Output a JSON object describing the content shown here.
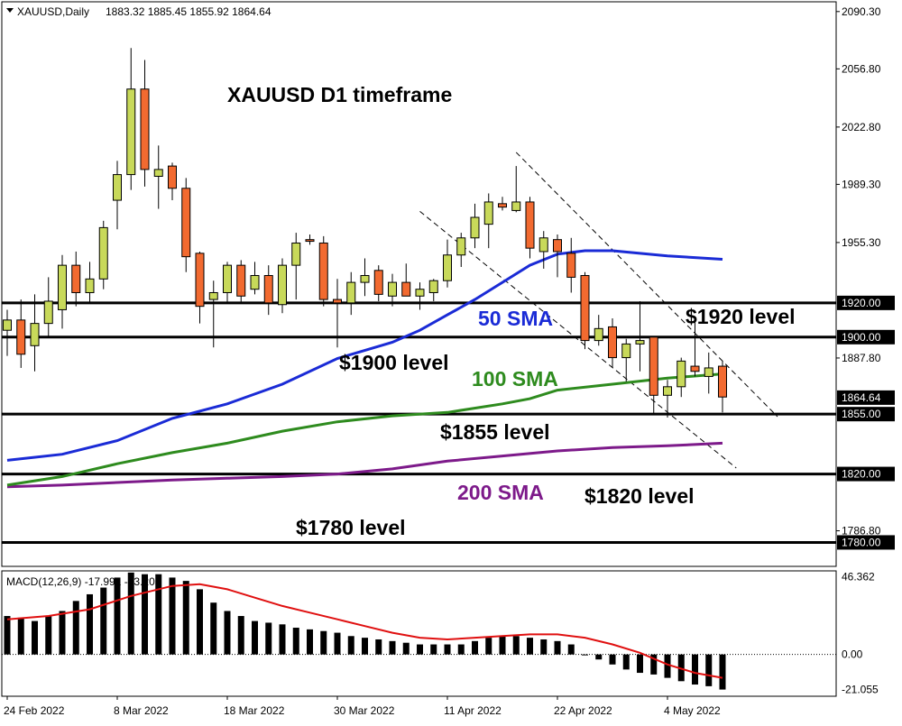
{
  "header": {
    "symbol": "XAUUSD,Daily",
    "ohlc": "1883.32 1885.45 1855.92 1864.64"
  },
  "title": "XAUUSD D1 timeframe",
  "labels": {
    "sma50": "50 SMA",
    "sma100": "100 SMA",
    "sma200": "200 SMA",
    "lvl1920": "$1920 level",
    "lvl1900": "$1900 level",
    "lvl1855": "$1855 level",
    "lvl1820": "$1820 level",
    "lvl1780": "$1780 level"
  },
  "macd_label": "MACD(12,26,9) -17.991 -13.205",
  "colors": {
    "bull": "#c8d95a",
    "bear": "#f26a30",
    "sma50": "#1a2bd6",
    "sma100": "#2e8b1e",
    "sma200": "#7d1a8a",
    "signal": "#e01010",
    "level": "#000000",
    "sma50_text": "#1a2bd6",
    "sma100_text": "#2e8b1e",
    "sma200_text": "#7d1a8a"
  },
  "chart_data": [
    {
      "type": "candlestick",
      "title": "XAUUSD D1 timeframe",
      "ylim": [
        1766,
        2096
      ],
      "price_ticks": [
        2090.3,
        2056.8,
        2022.8,
        1989.3,
        1955.3,
        1887.8,
        1786.8
      ],
      "price_tick_labels": [
        "2090.30",
        "2056.80",
        "2022.80",
        "1989.30",
        "1955.30",
        "1887.80",
        "1786.80"
      ],
      "highlight_labels": [
        {
          "value": 1920.0,
          "text": "1920.00"
        },
        {
          "value": 1900.0,
          "text": "1900.00"
        },
        {
          "value": 1864.64,
          "text": "1864.64"
        },
        {
          "value": 1855.0,
          "text": "1855.00"
        },
        {
          "value": 1820.0,
          "text": "1820.00"
        },
        {
          "value": 1780.0,
          "text": "1780.00"
        }
      ],
      "date_labels": [
        {
          "index": 0,
          "text": "24 Feb 2022"
        },
        {
          "index": 8,
          "text": "8 Mar 2022"
        },
        {
          "index": 16,
          "text": "18 Mar 2022"
        },
        {
          "index": 24,
          "text": "30 Mar 2022"
        },
        {
          "index": 32,
          "text": "11 Apr 2022"
        },
        {
          "index": 40,
          "text": "22 Apr 2022"
        },
        {
          "index": 48,
          "text": "4 May 2022"
        }
      ],
      "levels": [
        1920,
        1900,
        1855,
        1820,
        1780
      ],
      "candles": [
        {
          "o": 1904,
          "h": 1916,
          "l": 1889,
          "c": 1910
        },
        {
          "o": 1910,
          "h": 1922,
          "l": 1882,
          "c": 1890
        },
        {
          "o": 1895,
          "h": 1925,
          "l": 1880,
          "c": 1908
        },
        {
          "o": 1908,
          "h": 1935,
          "l": 1900,
          "c": 1921
        },
        {
          "o": 1916,
          "h": 1948,
          "l": 1905,
          "c": 1942
        },
        {
          "o": 1942,
          "h": 1950,
          "l": 1918,
          "c": 1926
        },
        {
          "o": 1926,
          "h": 1944,
          "l": 1920,
          "c": 1934
        },
        {
          "o": 1934,
          "h": 1968,
          "l": 1928,
          "c": 1964
        },
        {
          "o": 1980,
          "h": 2003,
          "l": 1963,
          "c": 1995
        },
        {
          "o": 1995,
          "h": 2069,
          "l": 1986,
          "c": 2045
        },
        {
          "o": 2045,
          "h": 2062,
          "l": 1988,
          "c": 1998
        },
        {
          "o": 1994,
          "h": 2012,
          "l": 1975,
          "c": 1998
        },
        {
          "o": 2000,
          "h": 2002,
          "l": 1980,
          "c": 1987
        },
        {
          "o": 1987,
          "h": 1993,
          "l": 1938,
          "c": 1947
        },
        {
          "o": 1949,
          "h": 1950,
          "l": 1908,
          "c": 1918
        },
        {
          "o": 1922,
          "h": 1933,
          "l": 1894,
          "c": 1926
        },
        {
          "o": 1926,
          "h": 1944,
          "l": 1920,
          "c": 1942
        },
        {
          "o": 1942,
          "h": 1945,
          "l": 1920,
          "c": 1924
        },
        {
          "o": 1928,
          "h": 1944,
          "l": 1925,
          "c": 1936
        },
        {
          "o": 1936,
          "h": 1942,
          "l": 1913,
          "c": 1920
        },
        {
          "o": 1919,
          "h": 1946,
          "l": 1914,
          "c": 1942
        },
        {
          "o": 1942,
          "h": 1961,
          "l": 1922,
          "c": 1955
        },
        {
          "o": 1957,
          "h": 1960,
          "l": 1954,
          "c": 1956
        },
        {
          "o": 1955,
          "h": 1959,
          "l": 1918,
          "c": 1922
        },
        {
          "o": 1922,
          "h": 1934,
          "l": 1894,
          "c": 1920
        },
        {
          "o": 1920,
          "h": 1938,
          "l": 1913,
          "c": 1932
        },
        {
          "o": 1932,
          "h": 1946,
          "l": 1924,
          "c": 1936
        },
        {
          "o": 1939,
          "h": 1942,
          "l": 1921,
          "c": 1925
        },
        {
          "o": 1924,
          "h": 1937,
          "l": 1918,
          "c": 1932
        },
        {
          "o": 1932,
          "h": 1943,
          "l": 1924,
          "c": 1924
        },
        {
          "o": 1924,
          "h": 1932,
          "l": 1916,
          "c": 1928
        },
        {
          "o": 1926,
          "h": 1934,
          "l": 1921,
          "c": 1933
        },
        {
          "o": 1933,
          "h": 1957,
          "l": 1929,
          "c": 1948
        },
        {
          "o": 1948,
          "h": 1961,
          "l": 1941,
          "c": 1958
        },
        {
          "o": 1958,
          "h": 1978,
          "l": 1952,
          "c": 1970
        },
        {
          "o": 1966,
          "h": 1984,
          "l": 1952,
          "c": 1979
        },
        {
          "o": 1978,
          "h": 1982,
          "l": 1974,
          "c": 1976
        },
        {
          "o": 1974,
          "h": 2000,
          "l": 1973,
          "c": 1979
        },
        {
          "o": 1979,
          "h": 1982,
          "l": 1946,
          "c": 1952
        },
        {
          "o": 1950,
          "h": 1962,
          "l": 1940,
          "c": 1958
        },
        {
          "o": 1957,
          "h": 1960,
          "l": 1935,
          "c": 1950
        },
        {
          "o": 1949,
          "h": 1958,
          "l": 1926,
          "c": 1935
        },
        {
          "o": 1936,
          "h": 1938,
          "l": 1893,
          "c": 1898
        },
        {
          "o": 1898,
          "h": 1913,
          "l": 1895,
          "c": 1905
        },
        {
          "o": 1906,
          "h": 1911,
          "l": 1882,
          "c": 1888
        },
        {
          "o": 1888,
          "h": 1899,
          "l": 1874,
          "c": 1896
        },
        {
          "o": 1896,
          "h": 1921,
          "l": 1880,
          "c": 1898
        },
        {
          "o": 1900,
          "h": 1900,
          "l": 1855,
          "c": 1866
        },
        {
          "o": 1866,
          "h": 1875,
          "l": 1853,
          "c": 1871
        },
        {
          "o": 1871,
          "h": 1888,
          "l": 1865,
          "c": 1886
        },
        {
          "o": 1883,
          "h": 1909,
          "l": 1877,
          "c": 1880
        },
        {
          "o": 1877,
          "h": 1891,
          "l": 1867,
          "c": 1882
        },
        {
          "o": 1883,
          "h": 1886,
          "l": 1856,
          "c": 1865
        }
      ],
      "sma50": [
        [
          0,
          1828
        ],
        [
          4,
          1831.5
        ],
        [
          8,
          1839.5
        ],
        [
          12,
          1852.5
        ],
        [
          16,
          1861
        ],
        [
          20,
          1872.5
        ],
        [
          24,
          1887.5
        ],
        [
          28,
          1897
        ],
        [
          30,
          1904
        ],
        [
          32,
          1913
        ],
        [
          34,
          1922
        ],
        [
          36,
          1932
        ],
        [
          38,
          1942
        ],
        [
          40,
          1948.5
        ],
        [
          42,
          1950.5
        ],
        [
          44,
          1950.5
        ],
        [
          46,
          1949
        ],
        [
          48,
          1947.5
        ],
        [
          50,
          1946.5
        ],
        [
          52,
          1945.5
        ]
      ],
      "sma100": [
        [
          0,
          1813.5
        ],
        [
          4,
          1818.5
        ],
        [
          8,
          1826
        ],
        [
          12,
          1832.5
        ],
        [
          16,
          1838
        ],
        [
          20,
          1845
        ],
        [
          24,
          1850.5
        ],
        [
          28,
          1854
        ],
        [
          32,
          1856
        ],
        [
          36,
          1861
        ],
        [
          38,
          1864
        ],
        [
          40,
          1869
        ],
        [
          44,
          1872.5
        ],
        [
          48,
          1876
        ],
        [
          52,
          1878.5
        ]
      ],
      "sma200": [
        [
          0,
          1812.5
        ],
        [
          4,
          1813.5
        ],
        [
          8,
          1815
        ],
        [
          12,
          1816.5
        ],
        [
          16,
          1817.5
        ],
        [
          20,
          1818.5
        ],
        [
          24,
          1820
        ],
        [
          28,
          1823
        ],
        [
          32,
          1827.5
        ],
        [
          36,
          1830.5
        ],
        [
          40,
          1833.5
        ],
        [
          44,
          1835.5
        ],
        [
          48,
          1836.5
        ],
        [
          52,
          1838
        ]
      ],
      "trendlines": [
        {
          "from": [
            37,
            2008
          ],
          "to": [
            56,
            1853.5
          ]
        },
        {
          "from": [
            30,
            1973.5
          ],
          "to": [
            53,
            1823.5
          ]
        }
      ]
    },
    {
      "type": "bar",
      "title": "MACD(12,26,9)",
      "ylim": [
        -25,
        50
      ],
      "ticks": [
        46.362,
        0.0,
        -21.055
      ],
      "tick_labels": [
        "46.362",
        "0.00",
        "-21.055"
      ],
      "histogram": [
        23,
        22,
        20,
        23,
        26,
        32,
        36,
        40,
        46,
        49,
        48,
        48,
        46,
        44,
        39,
        31,
        26,
        23,
        20,
        19,
        18,
        16,
        15,
        14,
        13,
        11,
        10,
        9,
        8,
        7,
        6,
        6,
        6,
        6,
        8,
        10,
        11,
        11,
        10,
        9,
        8,
        6,
        0,
        -3,
        -6,
        -9,
        -11,
        -12,
        -14,
        -16,
        -18,
        -19,
        -21
      ],
      "signal": [
        [
          0,
          21
        ],
        [
          3,
          23
        ],
        [
          6,
          27
        ],
        [
          9,
          35
        ],
        [
          12,
          41
        ],
        [
          14,
          42
        ],
        [
          16,
          39
        ],
        [
          18,
          34
        ],
        [
          20,
          29
        ],
        [
          22,
          25
        ],
        [
          24,
          21
        ],
        [
          26,
          17
        ],
        [
          28,
          13
        ],
        [
          30,
          10
        ],
        [
          32,
          9
        ],
        [
          34,
          10
        ],
        [
          36,
          11
        ],
        [
          38,
          12
        ],
        [
          40,
          12
        ],
        [
          42,
          10
        ],
        [
          44,
          6
        ],
        [
          46,
          1
        ],
        [
          48,
          -6
        ],
        [
          50,
          -11
        ],
        [
          52,
          -14
        ]
      ]
    }
  ]
}
